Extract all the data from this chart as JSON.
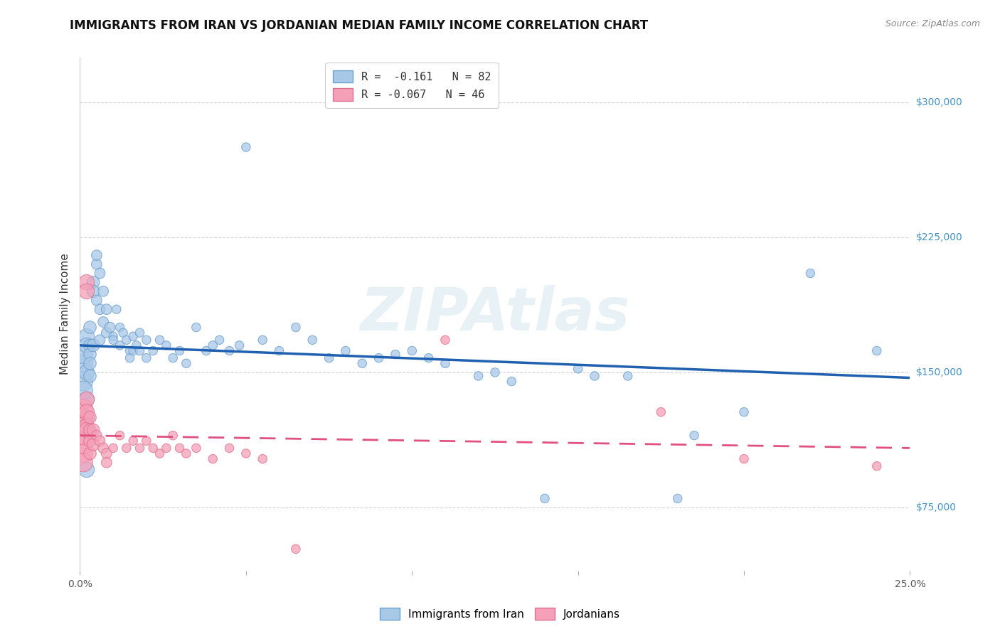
{
  "title": "IMMIGRANTS FROM IRAN VS JORDANIAN MEDIAN FAMILY INCOME CORRELATION CHART",
  "source": "Source: ZipAtlas.com",
  "ylabel": "Median Family Income",
  "yticks": [
    75000,
    150000,
    225000,
    300000
  ],
  "ytick_labels": [
    "$75,000",
    "$150,000",
    "$225,000",
    "$300,000"
  ],
  "xlim": [
    0.0,
    0.25
  ],
  "ylim": [
    40000,
    325000
  ],
  "legend_line1": "R =  -0.161   N = 82",
  "legend_line2": "R = -0.067   N = 46",
  "legend_label_blue": "Immigrants from Iran",
  "legend_label_pink": "Jordanians",
  "watermark": "ZIPAtlas",
  "blue_scatter": [
    [
      0.001,
      155000
    ],
    [
      0.001,
      160000
    ],
    [
      0.001,
      145000
    ],
    [
      0.001,
      140000
    ],
    [
      0.002,
      170000
    ],
    [
      0.002,
      165000
    ],
    [
      0.002,
      150000
    ],
    [
      0.002,
      135000
    ],
    [
      0.002,
      125000
    ],
    [
      0.003,
      175000
    ],
    [
      0.003,
      165000
    ],
    [
      0.003,
      160000
    ],
    [
      0.003,
      155000
    ],
    [
      0.003,
      148000
    ],
    [
      0.004,
      200000
    ],
    [
      0.004,
      195000
    ],
    [
      0.004,
      165000
    ],
    [
      0.005,
      210000
    ],
    [
      0.005,
      215000
    ],
    [
      0.005,
      190000
    ],
    [
      0.006,
      205000
    ],
    [
      0.006,
      185000
    ],
    [
      0.006,
      168000
    ],
    [
      0.007,
      195000
    ],
    [
      0.007,
      178000
    ],
    [
      0.008,
      185000
    ],
    [
      0.008,
      172000
    ],
    [
      0.009,
      175000
    ],
    [
      0.01,
      170000
    ],
    [
      0.01,
      168000
    ],
    [
      0.011,
      185000
    ],
    [
      0.012,
      175000
    ],
    [
      0.012,
      165000
    ],
    [
      0.013,
      172000
    ],
    [
      0.014,
      168000
    ],
    [
      0.015,
      162000
    ],
    [
      0.015,
      158000
    ],
    [
      0.016,
      170000
    ],
    [
      0.016,
      162000
    ],
    [
      0.017,
      165000
    ],
    [
      0.018,
      172000
    ],
    [
      0.018,
      162000
    ],
    [
      0.02,
      168000
    ],
    [
      0.02,
      158000
    ],
    [
      0.022,
      162000
    ],
    [
      0.024,
      168000
    ],
    [
      0.026,
      165000
    ],
    [
      0.028,
      158000
    ],
    [
      0.03,
      162000
    ],
    [
      0.032,
      155000
    ],
    [
      0.035,
      175000
    ],
    [
      0.038,
      162000
    ],
    [
      0.04,
      165000
    ],
    [
      0.042,
      168000
    ],
    [
      0.045,
      162000
    ],
    [
      0.048,
      165000
    ],
    [
      0.05,
      275000
    ],
    [
      0.055,
      168000
    ],
    [
      0.06,
      162000
    ],
    [
      0.065,
      175000
    ],
    [
      0.07,
      168000
    ],
    [
      0.075,
      158000
    ],
    [
      0.08,
      162000
    ],
    [
      0.085,
      155000
    ],
    [
      0.09,
      158000
    ],
    [
      0.095,
      160000
    ],
    [
      0.1,
      162000
    ],
    [
      0.105,
      158000
    ],
    [
      0.11,
      155000
    ],
    [
      0.12,
      148000
    ],
    [
      0.125,
      150000
    ],
    [
      0.13,
      145000
    ],
    [
      0.14,
      80000
    ],
    [
      0.15,
      152000
    ],
    [
      0.155,
      148000
    ],
    [
      0.165,
      148000
    ],
    [
      0.185,
      115000
    ],
    [
      0.2,
      128000
    ],
    [
      0.22,
      205000
    ],
    [
      0.24,
      162000
    ],
    [
      0.002,
      96000
    ],
    [
      0.18,
      80000
    ]
  ],
  "pink_scatter": [
    [
      0.001,
      130000
    ],
    [
      0.001,
      125000
    ],
    [
      0.001,
      120000
    ],
    [
      0.001,
      115000
    ],
    [
      0.001,
      110000
    ],
    [
      0.001,
      105000
    ],
    [
      0.001,
      100000
    ],
    [
      0.002,
      200000
    ],
    [
      0.002,
      195000
    ],
    [
      0.002,
      135000
    ],
    [
      0.002,
      128000
    ],
    [
      0.002,
      120000
    ],
    [
      0.002,
      118000
    ],
    [
      0.003,
      125000
    ],
    [
      0.003,
      118000
    ],
    [
      0.003,
      112000
    ],
    [
      0.003,
      105000
    ],
    [
      0.004,
      118000
    ],
    [
      0.004,
      110000
    ],
    [
      0.005,
      115000
    ],
    [
      0.006,
      112000
    ],
    [
      0.007,
      108000
    ],
    [
      0.008,
      105000
    ],
    [
      0.008,
      100000
    ],
    [
      0.01,
      108000
    ],
    [
      0.012,
      115000
    ],
    [
      0.014,
      108000
    ],
    [
      0.016,
      112000
    ],
    [
      0.018,
      108000
    ],
    [
      0.02,
      112000
    ],
    [
      0.022,
      108000
    ],
    [
      0.024,
      105000
    ],
    [
      0.026,
      108000
    ],
    [
      0.028,
      115000
    ],
    [
      0.03,
      108000
    ],
    [
      0.032,
      105000
    ],
    [
      0.035,
      108000
    ],
    [
      0.04,
      102000
    ],
    [
      0.045,
      108000
    ],
    [
      0.05,
      105000
    ],
    [
      0.055,
      102000
    ],
    [
      0.065,
      52000
    ],
    [
      0.11,
      168000
    ],
    [
      0.175,
      128000
    ],
    [
      0.2,
      102000
    ],
    [
      0.24,
      98000
    ]
  ],
  "blue_line": [
    [
      0.0,
      165000
    ],
    [
      0.25,
      147000
    ]
  ],
  "pink_line": [
    [
      0.0,
      115000
    ],
    [
      0.25,
      108000
    ]
  ],
  "background_color": "#ffffff",
  "grid_color": "#cccccc",
  "title_fontsize": 12,
  "source_fontsize": 9,
  "axis_label_fontsize": 11,
  "tick_fontsize": 10,
  "legend_fontsize": 11,
  "watermark_fontsize": 60,
  "blue_face": "#a8c8e8",
  "blue_edge": "#6aa0cc",
  "pink_face": "#f4a0b8",
  "pink_edge": "#e07090",
  "blue_line_color": "#2060b0",
  "pink_line_color": "#e05080"
}
